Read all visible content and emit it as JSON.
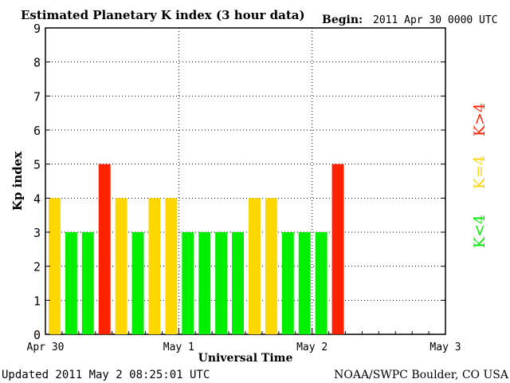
{
  "chart_data": {
    "type": "bar",
    "title": "Estimated Planetary K index (3 hour data)",
    "begin_label": "Begin:",
    "begin_value": "2011 Apr 30 0000 UTC",
    "xlabel": "Universal Time",
    "ylabel": "Kp index",
    "ylim": [
      0,
      9
    ],
    "y_ticks": [
      "0",
      "1",
      "2",
      "3",
      "4",
      "5",
      "6",
      "7",
      "8",
      "9"
    ],
    "x_ticks": [
      "Apr 30",
      "May 1",
      "May 2",
      "May 3"
    ],
    "bins_per_day": 8,
    "total_bins": 24,
    "grid": "dotted",
    "values": [
      4,
      3,
      3,
      5,
      4,
      3,
      4,
      4,
      3,
      3,
      3,
      3,
      4,
      4,
      3,
      3,
      3,
      5
    ],
    "legend": [
      {
        "label": "K<4",
        "color": "#00ee00"
      },
      {
        "label": "K=4",
        "color": "#ffd700"
      },
      {
        "label": "K>4",
        "color": "#ff2200"
      }
    ],
    "colors": {
      "low": "#00ee00",
      "mid": "#ffd700",
      "high": "#ff2200"
    }
  },
  "footer": {
    "updated": "Updated 2011 May  2 08:25:01 UTC",
    "source": "NOAA/SWPC Boulder, CO USA"
  }
}
